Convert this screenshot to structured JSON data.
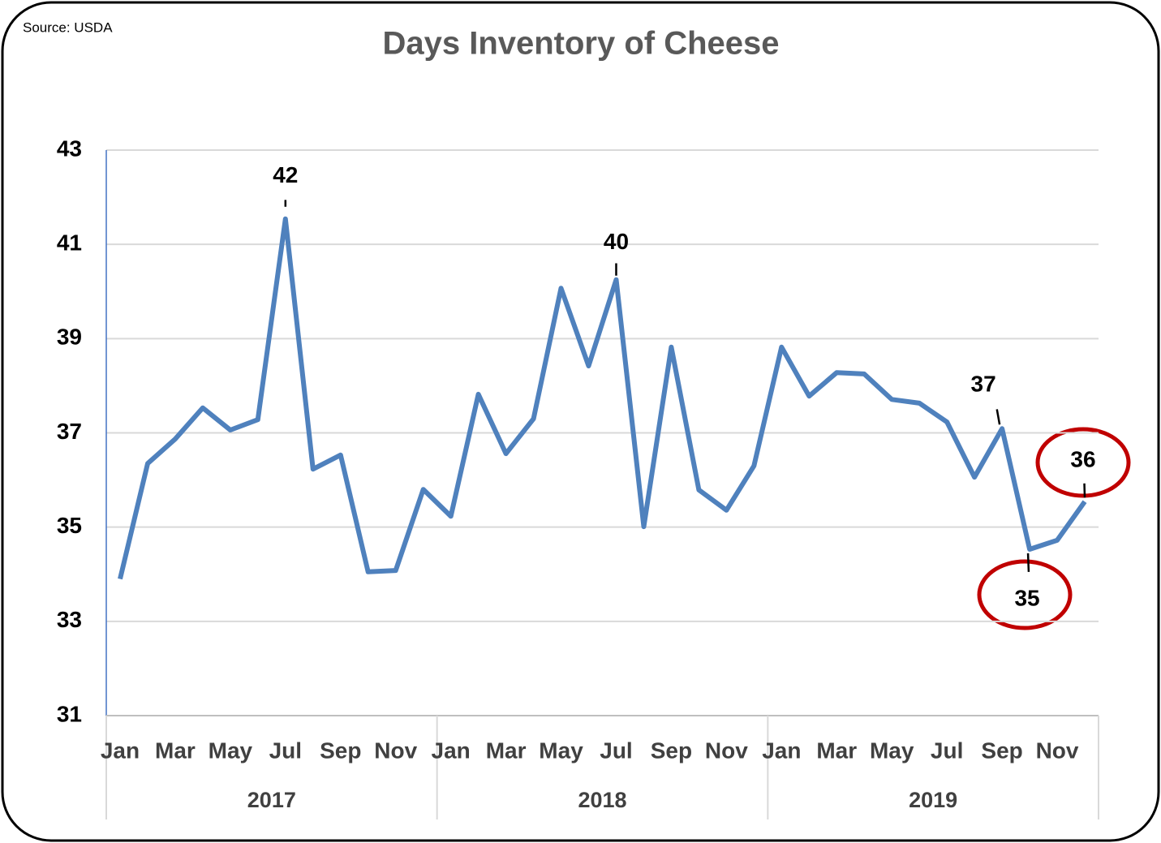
{
  "chart_data": {
    "type": "line",
    "title": "Days Inventory of Cheese",
    "source": "Source: USDA",
    "categories": [
      "Jan",
      null,
      "Mar",
      null,
      "May",
      null,
      "Jul",
      null,
      "Sep",
      null,
      "Nov",
      null,
      "Jan",
      null,
      "Mar",
      null,
      "May",
      null,
      "Jul",
      null,
      "Sep",
      null,
      "Nov",
      null,
      "Jan",
      null,
      "Mar",
      null,
      "May",
      null,
      "Jul",
      null,
      "Sep",
      null,
      "Nov",
      null
    ],
    "years": [
      "2017",
      "2018",
      "2019"
    ],
    "values": [
      33.9,
      36.35,
      36.87,
      37.53,
      37.06,
      37.28,
      41.54,
      36.23,
      36.53,
      34.05,
      34.08,
      35.8,
      35.23,
      37.82,
      36.56,
      37.3,
      40.07,
      38.42,
      40.25,
      35.01,
      38.82,
      35.79,
      35.36,
      36.3,
      38.82,
      37.78,
      38.28,
      38.25,
      37.71,
      37.63,
      37.23,
      36.06,
      37.09,
      34.53,
      34.72,
      35.54
    ],
    "value_labels": [
      null,
      null,
      null,
      null,
      null,
      null,
      "42",
      null,
      null,
      null,
      null,
      null,
      null,
      null,
      null,
      null,
      null,
      null,
      "40",
      null,
      null,
      null,
      null,
      null,
      null,
      null,
      null,
      null,
      null,
      null,
      null,
      null,
      "37",
      "35",
      null,
      "36"
    ],
    "color": "#4f81bd",
    "ylim": [
      31,
      43
    ],
    "yticks": [
      31,
      33,
      35,
      37,
      39,
      41,
      43
    ],
    "grid": true
  }
}
